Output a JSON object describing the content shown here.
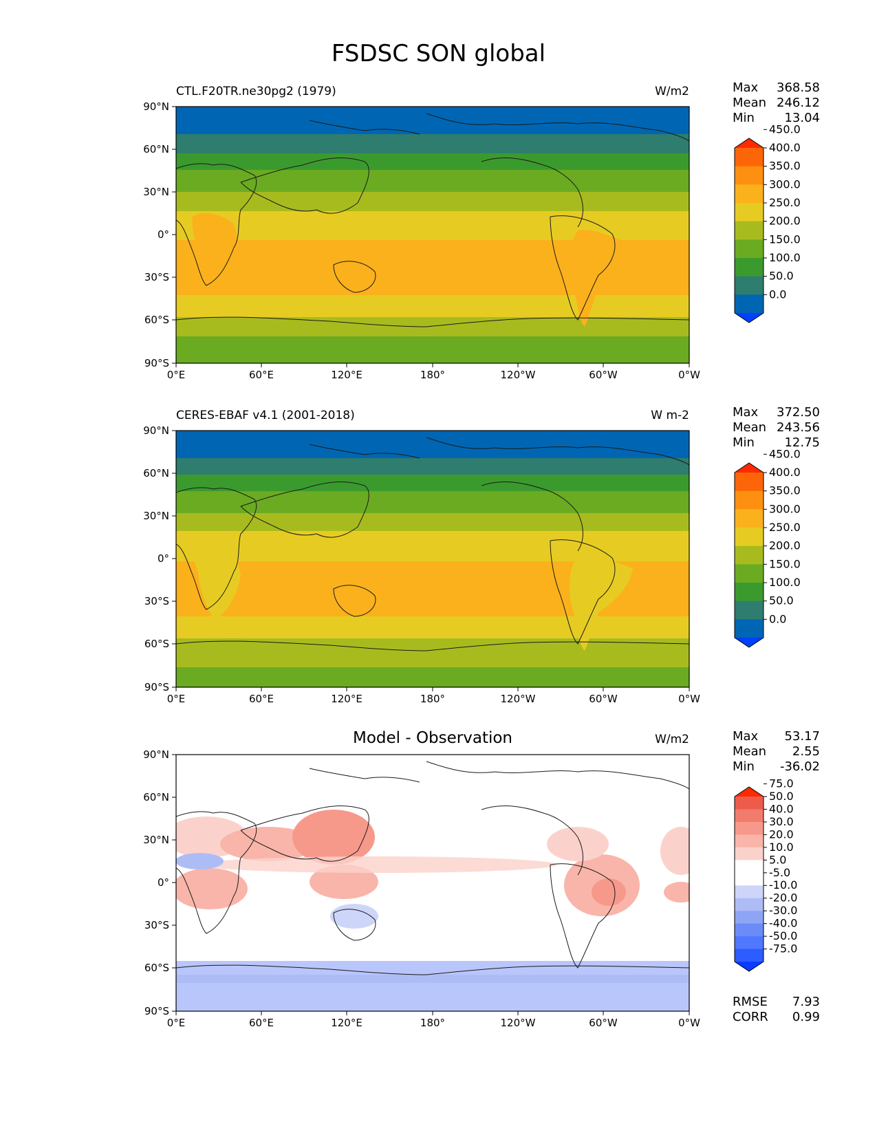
{
  "page": {
    "title": "FSDSC SON global"
  },
  "axes": {
    "y_ticks": [
      "90°N",
      "60°N",
      "30°N",
      "0°",
      "30°S",
      "60°S",
      "90°S"
    ],
    "x_ticks": [
      "0°E",
      "60°E",
      "120°E",
      "180°",
      "120°W",
      "60°W",
      "0°W"
    ]
  },
  "panels": [
    {
      "id": "model",
      "left_title": "CTL.F20TR.ne30pg2 (1979)",
      "center_title": "",
      "units": "W/m2",
      "stats": {
        "max_label": "Max",
        "max": "368.58",
        "mean_label": "Mean",
        "mean": "246.12",
        "min_label": "Min",
        "min": "13.04"
      },
      "colorbar": {
        "colors": [
          "#0040ff",
          "#0066b3",
          "#2e7d6e",
          "#3b9a2e",
          "#6aab22",
          "#a8bb1e",
          "#e6cc22",
          "#fbb11c",
          "#fd9010",
          "#fc6508",
          "#ff2a00"
        ],
        "labels": [
          "0.0",
          "50.0",
          "100.0",
          "150.0",
          "200.0",
          "250.0",
          "300.0",
          "350.0",
          "400.0",
          "450.0"
        ]
      }
    },
    {
      "id": "obs",
      "left_title": "CERES-EBAF v4.1 (2001-2018)",
      "center_title": "",
      "units": "W m-2",
      "stats": {
        "max_label": "Max",
        "max": "372.50",
        "mean_label": "Mean",
        "mean": "243.56",
        "min_label": "Min",
        "min": "12.75"
      },
      "colorbar": {
        "colors": [
          "#0040ff",
          "#0066b3",
          "#2e7d6e",
          "#3b9a2e",
          "#6aab22",
          "#a8bb1e",
          "#e6cc22",
          "#fbb11c",
          "#fd9010",
          "#fc6508",
          "#ff2a00"
        ],
        "labels": [
          "0.0",
          "50.0",
          "100.0",
          "150.0",
          "200.0",
          "250.0",
          "300.0",
          "350.0",
          "400.0",
          "450.0"
        ]
      }
    },
    {
      "id": "diff",
      "left_title": "",
      "center_title": "Model - Observation",
      "units": "W/m2",
      "stats": {
        "max_label": "Max",
        "max": "53.17",
        "mean_label": "Mean",
        "mean": "2.55",
        "min_label": "Min",
        "min": "-36.02"
      },
      "extra_stats": {
        "rmse_label": "RMSE",
        "rmse": "7.93",
        "corr_label": "CORR",
        "corr": "0.99"
      },
      "colorbar": {
        "colors": [
          "#0a3cff",
          "#2d5cff",
          "#4f77ff",
          "#6b8cf7",
          "#8ea5f5",
          "#aebcf6",
          "#cdd6f8",
          "#ffffff",
          "#ffffff",
          "#fbd2cb",
          "#f9b5aa",
          "#f7998a",
          "#f27c6b",
          "#ed5c4a",
          "#ff2a00"
        ],
        "labels": [
          "-75.0",
          "-50.0",
          "-40.0",
          "-30.0",
          "-20.0",
          "-10.0",
          "-5.0",
          "5.0",
          "10.0",
          "20.0",
          "30.0",
          "40.0",
          "50.0",
          "75.0"
        ]
      }
    }
  ]
}
